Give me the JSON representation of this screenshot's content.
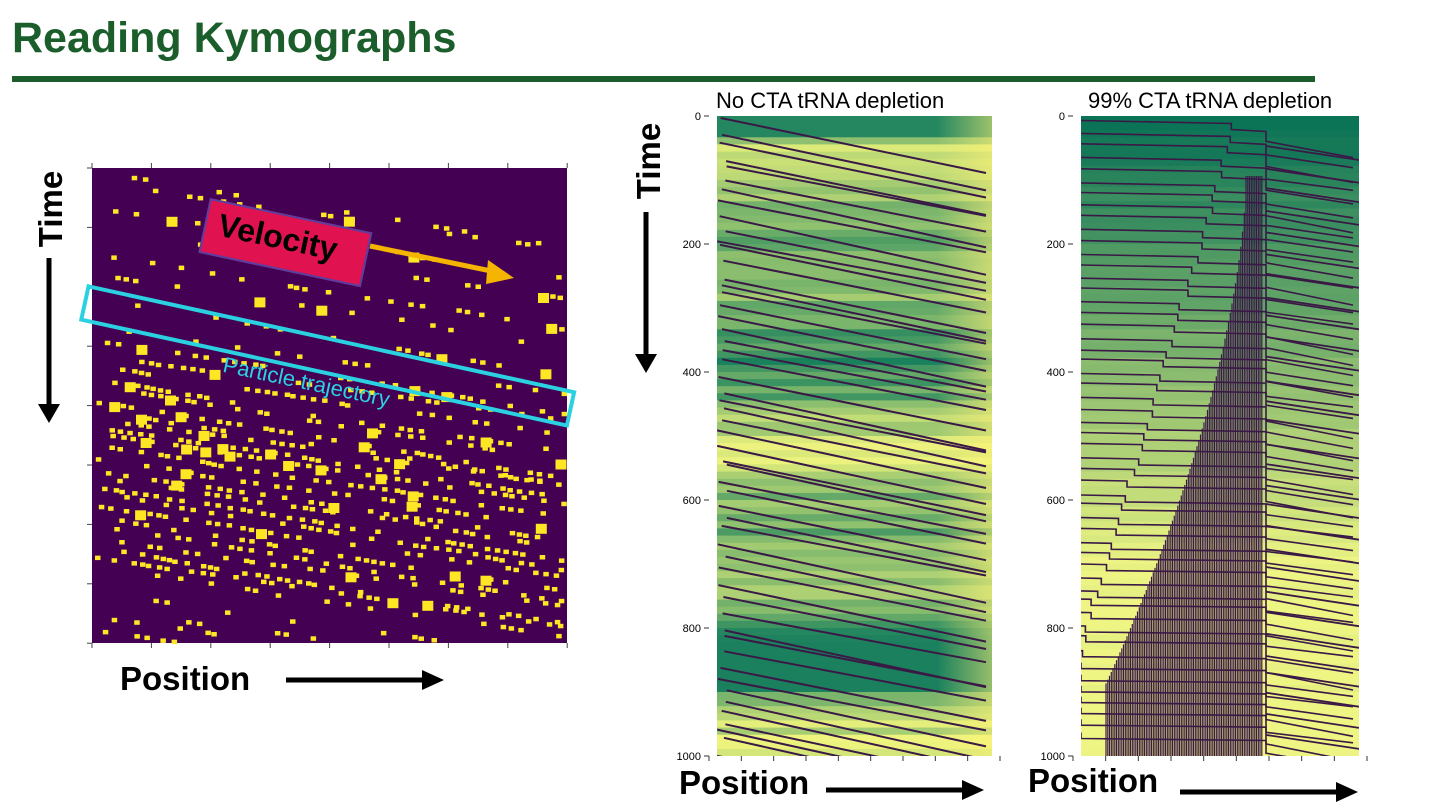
{
  "slide": {
    "title": "Reading Kymographs"
  },
  "left_diagram": {
    "time_label": "Time",
    "position_label": "Position",
    "velocity_label": "Velocity",
    "trajectory_label": "Particle trajectory",
    "colors": {
      "background": "#440154",
      "particle": "#fde725",
      "velocity_box": "#e0124f",
      "velocity_arrow": "#f5b400",
      "trajectory_box": "#2bd1e0"
    }
  },
  "kymographs": [
    {
      "title": "No CTA tRNA depletion",
      "y_ticks": [
        "0",
        "200",
        "400",
        "600",
        "800",
        "1000"
      ],
      "position_label": "Position"
    },
    {
      "title": "99% CTA tRNA depletion",
      "y_ticks": [
        "0",
        "200",
        "400",
        "600",
        "800",
        "1000"
      ],
      "position_label": "Position"
    }
  ],
  "time_label_right": "Time"
}
